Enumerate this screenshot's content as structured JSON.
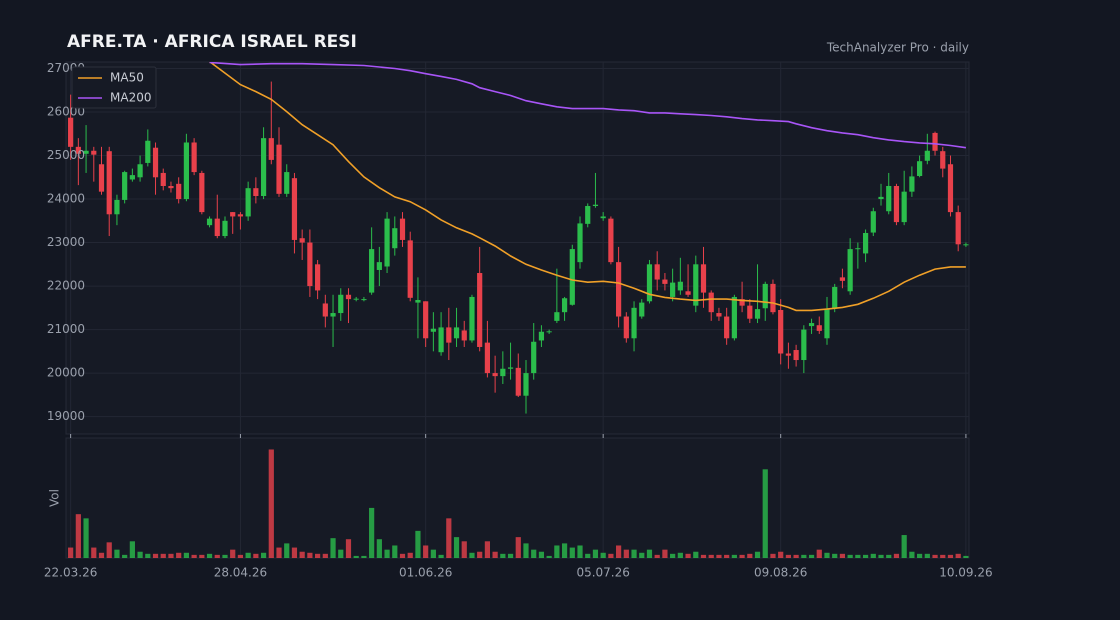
{
  "chart_data": {
    "type": "candlestick",
    "title": "AFRE.TA  ·  AFRICA ISRAEL RESI",
    "subtitle": "TechAnalyzer Pro · daily",
    "volume_label": "Vol",
    "legend": "upper left",
    "grid": true,
    "up_color": "#2bbd4c",
    "down_color": "#e8414b",
    "xlim": [
      -0.6,
      116.4
    ],
    "xticks": [
      {
        "value": 0,
        "label": "22.03.26"
      },
      {
        "value": 22,
        "label": "28.04.26"
      },
      {
        "value": 46,
        "label": "01.06.26"
      },
      {
        "value": 69,
        "label": "05.07.26"
      },
      {
        "value": 92,
        "label": "09.08.26"
      },
      {
        "value": 116,
        "label": "10.09.26"
      }
    ],
    "ylim": [
      18600,
      27150
    ],
    "yticks": [
      19000,
      20000,
      21000,
      22000,
      23000,
      24000,
      25000,
      26000,
      27000
    ],
    "volume_ylim": [
      0,
      115
    ],
    "open": [
      25870,
      25200,
      25040,
      25110,
      24800,
      25100,
      23650,
      23980,
      24450,
      24500,
      24830,
      25180,
      24600,
      24300,
      24350,
      24000,
      25300,
      24600,
      23400,
      23550,
      23150,
      23700,
      23650,
      23600,
      24250,
      24070,
      25400,
      25250,
      24120,
      24480,
      23100,
      23000,
      22500,
      21600,
      21300,
      21380,
      21800,
      21700,
      21700,
      21850,
      22370,
      22450,
      22870,
      23550,
      23050,
      21620,
      21650,
      20950,
      20480,
      21050,
      20800,
      20980,
      20750,
      22300,
      20700,
      20000,
      19930,
      20100,
      20120,
      19480,
      20000,
      20750,
      20950,
      21200,
      21400,
      21570,
      22550,
      23430,
      23840,
      23560,
      23550,
      22550,
      21300,
      20800,
      21300,
      21650,
      22500,
      22150,
      21750,
      21900,
      21880,
      21550,
      22500,
      21850,
      21380,
      21300,
      20800,
      21700,
      21550,
      21250,
      21490,
      22050,
      21450,
      20450,
      20530,
      20300,
      21080,
      21100,
      20800,
      21480,
      22200,
      21880,
      22850,
      22750,
      23230,
      24000,
      23720,
      24300,
      23470,
      24170,
      24530,
      24880,
      25520,
      25100,
      24800,
      23700,
      22950
    ],
    "high": [
      26400,
      25400,
      25700,
      25200,
      25200,
      25200,
      24100,
      24650,
      24700,
      25000,
      25600,
      25300,
      24700,
      24400,
      24500,
      25500,
      25400,
      24650,
      23600,
      24100,
      23600,
      23700,
      23700,
      24400,
      24500,
      25650,
      26700,
      25650,
      24800,
      24600,
      23300,
      23300,
      22600,
      21800,
      21800,
      21950,
      21950,
      21750,
      21750,
      23350,
      22900,
      23700,
      23600,
      23700,
      23250,
      22200,
      21650,
      21400,
      21400,
      21500,
      21500,
      21200,
      21800,
      22900,
      21200,
      20400,
      20500,
      20700,
      20450,
      20300,
      21150,
      21100,
      21000,
      22400,
      21750,
      22950,
      23600,
      23900,
      24600,
      23700,
      23600,
      22900,
      21400,
      21650,
      21700,
      22600,
      22800,
      22300,
      22400,
      22650,
      22500,
      22700,
      22900,
      21900,
      21500,
      21500,
      21800,
      22100,
      21700,
      22500,
      22100,
      22150,
      21700,
      20700,
      20650,
      21100,
      21250,
      21300,
      21750,
      22050,
      22400,
      23100,
      23000,
      23300,
      23800,
      24350,
      24600,
      24350,
      24650,
      24750,
      25000,
      25500,
      25550,
      25200,
      25000,
      23850,
      23000
    ],
    "low": [
      24900,
      24320,
      24600,
      24400,
      24100,
      23150,
      23400,
      23900,
      24400,
      24400,
      24750,
      24100,
      24200,
      24150,
      23900,
      23950,
      24550,
      23650,
      23350,
      23100,
      23100,
      23200,
      23300,
      23500,
      23900,
      24000,
      24800,
      24050,
      24050,
      22750,
      22600,
      21750,
      21700,
      21050,
      20600,
      21200,
      21150,
      21650,
      21650,
      21800,
      22000,
      22300,
      22700,
      22900,
      21650,
      20800,
      20600,
      20500,
      20400,
      20300,
      20600,
      20600,
      20700,
      20500,
      19900,
      19550,
      19750,
      19850,
      19450,
      19070,
      19850,
      20600,
      20900,
      21150,
      21200,
      21550,
      22400,
      23350,
      23800,
      23500,
      22500,
      21050,
      20700,
      20500,
      21250,
      21600,
      21900,
      21900,
      21650,
      21800,
      21750,
      21400,
      21500,
      21200,
      21200,
      20650,
      20750,
      21400,
      21150,
      21150,
      21200,
      21350,
      20200,
      20100,
      20150,
      20000,
      20900,
      20900,
      20650,
      21400,
      21950,
      21800,
      22400,
      22550,
      23150,
      23850,
      23650,
      23400,
      23400,
      24050,
      24500,
      24800,
      25000,
      24500,
      23600,
      22800,
      22900
    ],
    "close": [
      25200,
      25040,
      25110,
      25020,
      24170,
      23650,
      23980,
      24620,
      24550,
      24800,
      25340,
      24500,
      24300,
      24250,
      24000,
      25300,
      24620,
      23700,
      23550,
      23150,
      23500,
      23600,
      23600,
      24250,
      24070,
      25400,
      24900,
      24120,
      24620,
      23060,
      23000,
      22000,
      21900,
      21300,
      21380,
      21800,
      21700,
      21710,
      21700,
      22850,
      22550,
      23550,
      23330,
      23060,
      21730,
      21680,
      20800,
      21020,
      21050,
      20700,
      21050,
      20750,
      21750,
      20600,
      20000,
      19930,
      20100,
      20130,
      19480,
      20000,
      20720,
      20950,
      20960,
      21400,
      21720,
      22850,
      23440,
      23840,
      23870,
      23600,
      22550,
      21300,
      20800,
      21500,
      21620,
      22500,
      22150,
      22050,
      22080,
      22100,
      21800,
      22500,
      21850,
      21400,
      21300,
      20800,
      21750,
      21550,
      21250,
      21470,
      22050,
      21400,
      20450,
      20400,
      20300,
      21000,
      21150,
      20970,
      21480,
      21980,
      22120,
      22850,
      22870,
      23220,
      23720,
      24050,
      24300,
      23470,
      24170,
      24520,
      24870,
      25110,
      25110,
      24700,
      23700,
      22960,
      22960
    ],
    "volume": [
      10,
      42,
      38,
      10,
      5,
      15,
      8,
      3,
      16,
      6,
      4,
      4,
      4,
      4,
      5,
      5,
      3,
      3,
      4,
      3,
      3,
      8,
      3,
      5,
      4,
      5,
      104,
      10,
      14,
      10,
      6,
      5,
      4,
      4,
      19,
      8,
      18,
      2,
      2,
      48,
      18,
      8,
      12,
      4,
      5,
      26,
      12,
      8,
      3,
      38,
      20,
      16,
      5,
      6,
      16,
      6,
      4,
      4,
      20,
      14,
      8,
      6,
      2,
      12,
      14,
      10,
      12,
      4,
      8,
      5,
      4,
      12,
      8,
      8,
      5,
      8,
      3,
      8,
      4,
      5,
      4,
      6,
      3,
      3,
      3,
      3,
      3,
      3,
      4,
      6,
      85,
      4,
      6,
      3,
      3,
      3,
      3,
      8,
      5,
      4,
      4,
      3,
      3,
      3,
      4,
      3,
      3,
      4,
      22,
      6,
      4,
      4,
      3,
      3,
      3,
      4,
      2
    ],
    "series": [
      {
        "name": "MA50",
        "color": "#f0a028",
        "x": [
          18,
          22,
          24,
          26,
          28,
          30,
          32,
          34,
          36,
          38,
          40,
          42,
          44,
          46,
          48,
          50,
          52,
          53,
          55,
          57,
          59,
          61,
          63,
          65,
          67,
          69,
          71,
          73,
          75,
          77,
          79,
          81,
          83,
          85,
          87,
          89,
          91,
          93,
          94,
          96,
          98,
          100,
          102,
          104,
          106,
          108,
          110,
          112,
          114,
          116
        ],
        "values": [
          27160,
          26630,
          26470,
          26290,
          26010,
          25710,
          25480,
          25250,
          24860,
          24510,
          24260,
          24050,
          23940,
          23750,
          23520,
          23340,
          23200,
          23110,
          22920,
          22690,
          22500,
          22370,
          22250,
          22140,
          22090,
          22110,
          22070,
          21950,
          21810,
          21740,
          21700,
          21670,
          21700,
          21700,
          21670,
          21650,
          21610,
          21510,
          21440,
          21440,
          21470,
          21510,
          21580,
          21720,
          21880,
          22090,
          22250,
          22390,
          22440,
          22440
        ]
      },
      {
        "name": "MA200",
        "color": "#a855f7",
        "x": [
          18,
          22,
          26,
          30,
          34,
          38,
          42,
          44,
          46,
          48,
          50,
          52,
          53,
          55,
          57,
          59,
          61,
          63,
          65,
          67,
          69,
          71,
          73,
          75,
          77,
          79,
          81,
          83,
          85,
          87,
          89,
          91,
          93,
          94,
          96,
          98,
          100,
          102,
          104,
          106,
          108,
          110,
          112,
          114,
          116
        ],
        "values": [
          27140,
          27090,
          27110,
          27110,
          27090,
          27070,
          27000,
          26950,
          26880,
          26820,
          26750,
          26650,
          26560,
          26470,
          26380,
          26260,
          26190,
          26120,
          26080,
          26080,
          26080,
          26050,
          26030,
          25980,
          25980,
          25960,
          25940,
          25920,
          25890,
          25850,
          25820,
          25800,
          25780,
          25730,
          25640,
          25570,
          25520,
          25480,
          25410,
          25360,
          25320,
          25290,
          25270,
          25230,
          25180
        ]
      }
    ]
  }
}
